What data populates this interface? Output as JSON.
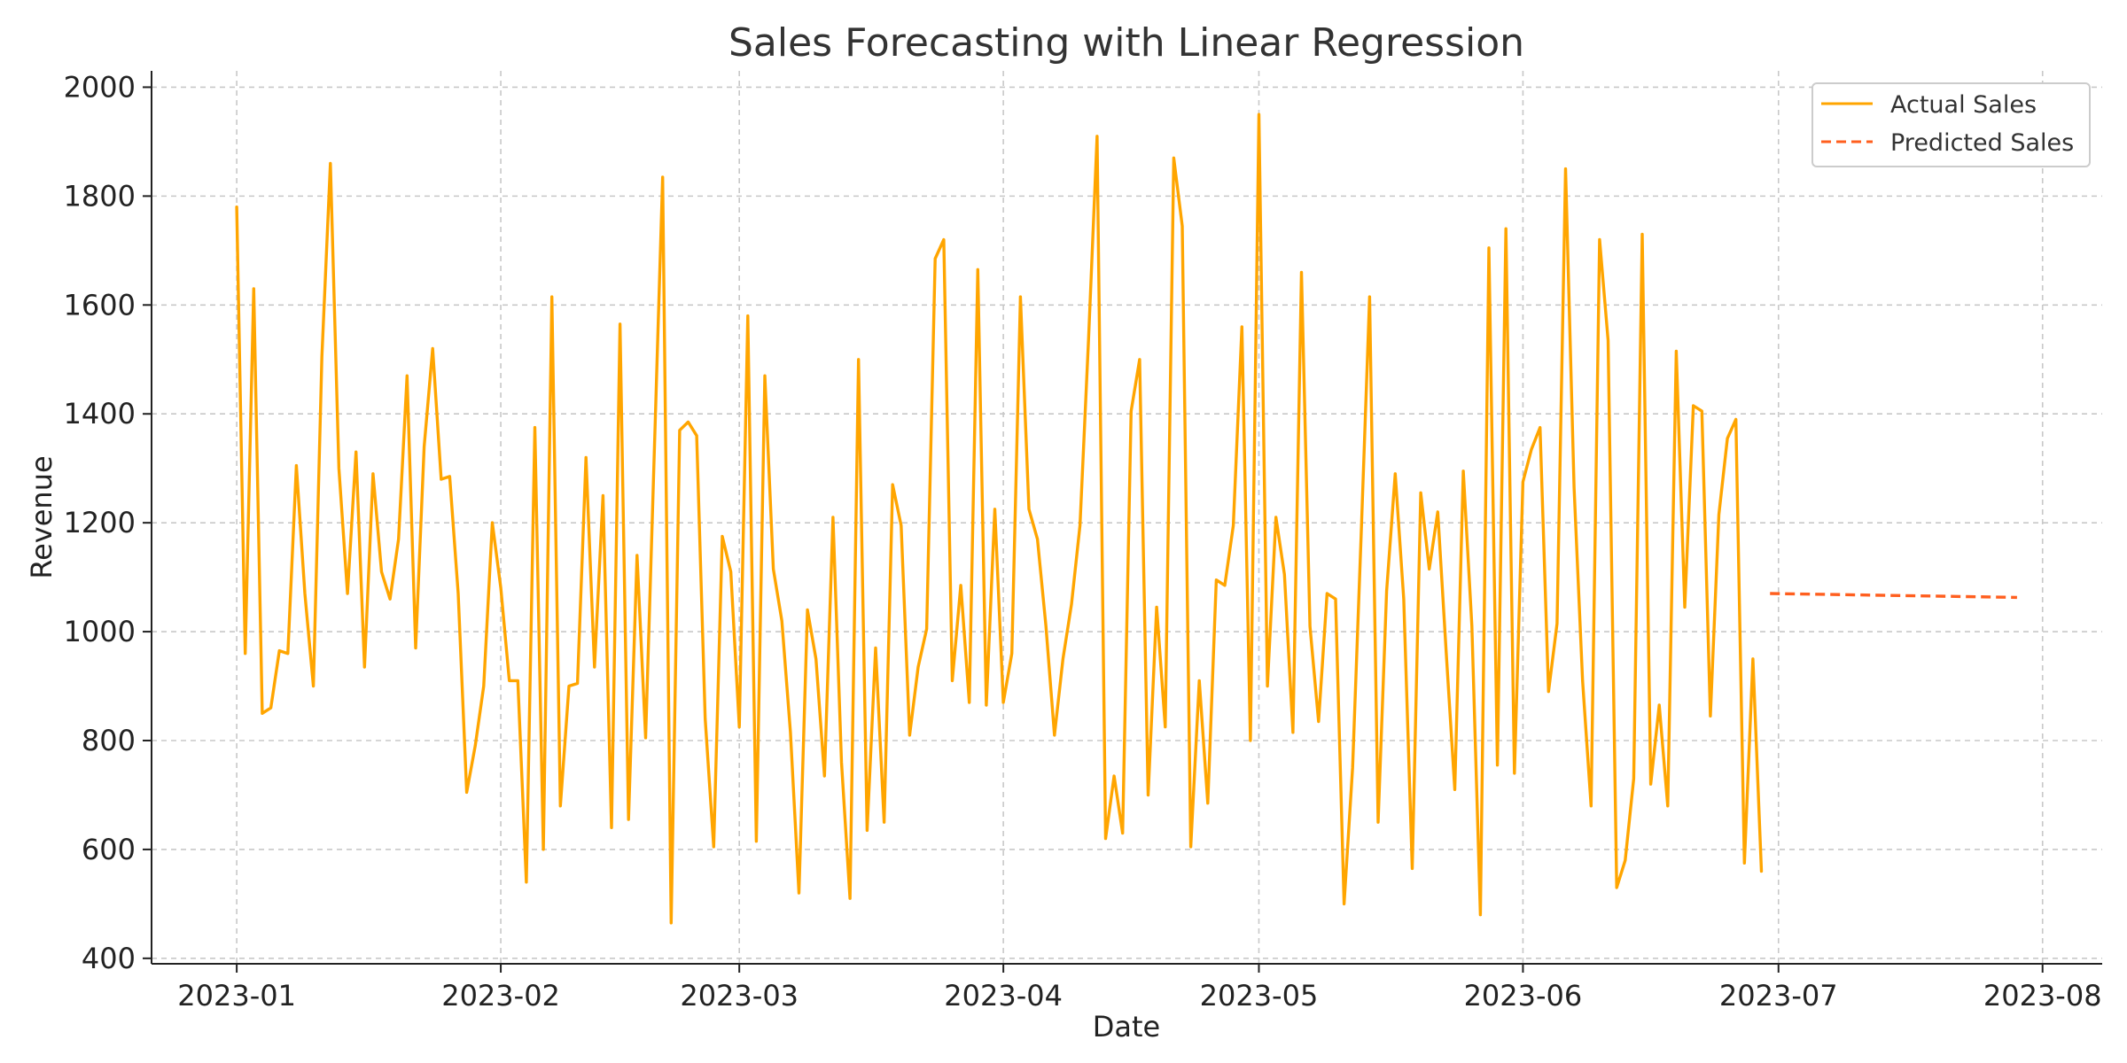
{
  "chart_data": {
    "type": "line",
    "title": "Sales Forecasting with Linear Regression",
    "xlabel": "Date",
    "ylabel": "Revenue",
    "xlim": [
      "2022-12-22",
      "2023-08-08"
    ],
    "ylim": [
      390,
      2030
    ],
    "grid": true,
    "legend_position": "top-right",
    "x_ticks": [
      "2023-01",
      "2023-02",
      "2023-03",
      "2023-04",
      "2023-05",
      "2023-06",
      "2023-07",
      "2023-08"
    ],
    "y_ticks": [
      400,
      600,
      800,
      1000,
      1200,
      1400,
      1600,
      1800,
      2000
    ],
    "series": [
      {
        "name": "Actual Sales",
        "color": "#FFA500",
        "style": "solid",
        "x": [
          "2023-01-01",
          "2023-01-02",
          "2023-01-03",
          "2023-01-04",
          "2023-01-05",
          "2023-01-06",
          "2023-01-07",
          "2023-01-08",
          "2023-01-09",
          "2023-01-10",
          "2023-01-11",
          "2023-01-12",
          "2023-01-13",
          "2023-01-14",
          "2023-01-15",
          "2023-01-16",
          "2023-01-17",
          "2023-01-18",
          "2023-01-19",
          "2023-01-20",
          "2023-01-21",
          "2023-01-22",
          "2023-01-23",
          "2023-01-24",
          "2023-01-25",
          "2023-01-26",
          "2023-01-27",
          "2023-01-28",
          "2023-01-29",
          "2023-01-30",
          "2023-01-31",
          "2023-02-01",
          "2023-02-02",
          "2023-02-03",
          "2023-02-04",
          "2023-02-05",
          "2023-02-06",
          "2023-02-07",
          "2023-02-08",
          "2023-02-09",
          "2023-02-10",
          "2023-02-11",
          "2023-02-12",
          "2023-02-13",
          "2023-02-14",
          "2023-02-15",
          "2023-02-16",
          "2023-02-17",
          "2023-02-18",
          "2023-02-19",
          "2023-02-20",
          "2023-02-21",
          "2023-02-22",
          "2023-02-23",
          "2023-02-24",
          "2023-02-25",
          "2023-02-26",
          "2023-02-27",
          "2023-02-28",
          "2023-03-01",
          "2023-03-02",
          "2023-03-03",
          "2023-03-04",
          "2023-03-05",
          "2023-03-06",
          "2023-03-07",
          "2023-03-08",
          "2023-03-09",
          "2023-03-10",
          "2023-03-11",
          "2023-03-12",
          "2023-03-13",
          "2023-03-14",
          "2023-03-15",
          "2023-03-16",
          "2023-03-17",
          "2023-03-18",
          "2023-03-19",
          "2023-03-20",
          "2023-03-21",
          "2023-03-22",
          "2023-03-23",
          "2023-03-24",
          "2023-03-25",
          "2023-03-26",
          "2023-03-27",
          "2023-03-28",
          "2023-03-29",
          "2023-03-30",
          "2023-03-31",
          "2023-04-01",
          "2023-04-02",
          "2023-04-03",
          "2023-04-04",
          "2023-04-05",
          "2023-04-06",
          "2023-04-07",
          "2023-04-08",
          "2023-04-09",
          "2023-04-10",
          "2023-04-11",
          "2023-04-12",
          "2023-04-13",
          "2023-04-14",
          "2023-04-15",
          "2023-04-16",
          "2023-04-17",
          "2023-04-18",
          "2023-04-19",
          "2023-04-20",
          "2023-04-21",
          "2023-04-22",
          "2023-04-23",
          "2023-04-24",
          "2023-04-25",
          "2023-04-26",
          "2023-04-27",
          "2023-04-28",
          "2023-04-29",
          "2023-04-30",
          "2023-05-01",
          "2023-05-02",
          "2023-05-03",
          "2023-05-04",
          "2023-05-05",
          "2023-05-06",
          "2023-05-07",
          "2023-05-08",
          "2023-05-09",
          "2023-05-10",
          "2023-05-11",
          "2023-05-12",
          "2023-05-13",
          "2023-05-14",
          "2023-05-15",
          "2023-05-16",
          "2023-05-17",
          "2023-05-18",
          "2023-05-19",
          "2023-05-20",
          "2023-05-21",
          "2023-05-22",
          "2023-05-23",
          "2023-05-24",
          "2023-05-25",
          "2023-05-26",
          "2023-05-27",
          "2023-05-28",
          "2023-05-29",
          "2023-05-30",
          "2023-05-31",
          "2023-06-01",
          "2023-06-02",
          "2023-06-03",
          "2023-06-04",
          "2023-06-05",
          "2023-06-06",
          "2023-06-07",
          "2023-06-08",
          "2023-06-09",
          "2023-06-10",
          "2023-06-11",
          "2023-06-12",
          "2023-06-13",
          "2023-06-14",
          "2023-06-15",
          "2023-06-16",
          "2023-06-17",
          "2023-06-18",
          "2023-06-19",
          "2023-06-20",
          "2023-06-21",
          "2023-06-22",
          "2023-06-23",
          "2023-06-24",
          "2023-06-25",
          "2023-06-26",
          "2023-06-27",
          "2023-06-28",
          "2023-06-29"
        ],
        "values": [
          1780,
          960,
          1630,
          850,
          860,
          965,
          960,
          1305,
          1070,
          900,
          1505,
          1860,
          1300,
          1070,
          1330,
          935,
          1290,
          1110,
          1060,
          1170,
          1470,
          970,
          1340,
          1520,
          1280,
          1285,
          1070,
          705,
          790,
          900,
          1200,
          1080,
          910,
          910,
          540,
          1375,
          600,
          1615,
          680,
          900,
          905,
          1320,
          935,
          1250,
          640,
          1565,
          655,
          1140,
          805,
          1320,
          1835,
          465,
          1370,
          1385,
          1360,
          840,
          605,
          1175,
          1110,
          825,
          1580,
          615,
          1470,
          1115,
          1020,
          815,
          520,
          1040,
          950,
          735,
          1210,
          760,
          510,
          1500,
          635,
          970,
          650,
          1270,
          1195,
          810,
          935,
          1005,
          1685,
          1720,
          910,
          1085,
          870,
          1665,
          865,
          1225,
          870,
          960,
          1615,
          1225,
          1170,
          1010,
          810,
          950,
          1050,
          1195,
          1535,
          1910,
          620,
          735,
          630,
          1405,
          1500,
          700,
          1045,
          825,
          1870,
          1745,
          605,
          910,
          685,
          1095,
          1085,
          1195,
          1560,
          800,
          1950,
          900,
          1210,
          1105,
          815,
          1660,
          1010,
          835,
          1070,
          1060,
          500,
          750,
          1175,
          1615,
          650,
          1075,
          1290,
          1060,
          565,
          1255,
          1115,
          1220,
          960,
          710,
          1295,
          1010,
          480,
          1705,
          755,
          1740,
          740,
          1275,
          1335,
          1375,
          890,
          1015,
          1850,
          1265,
          910,
          680,
          1720,
          1535,
          530,
          580,
          730,
          1730,
          720,
          865,
          680,
          1515,
          1045,
          1415,
          1405,
          845,
          1215,
          1355,
          1390,
          575,
          950,
          560
        ]
      },
      {
        "name": "Predicted Sales",
        "color": "#FF5F1F",
        "style": "dashed",
        "x": [
          "2023-06-30",
          "2023-07-29"
        ],
        "values": [
          1070,
          1063
        ]
      }
    ]
  }
}
